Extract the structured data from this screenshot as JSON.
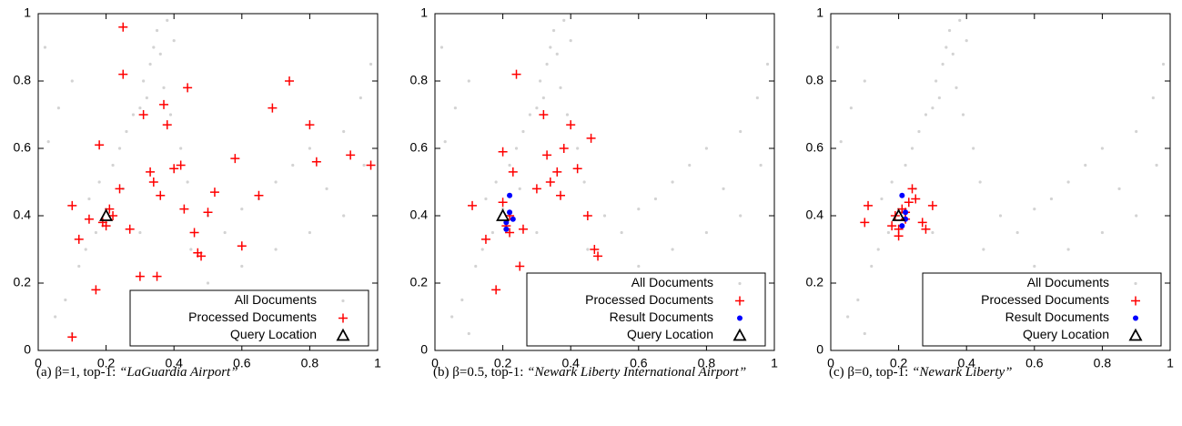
{
  "chart_data": [
    {
      "type": "scatter",
      "caption_prefix": "(a) β=1, top-1:",
      "caption_query": "“LaGuardia Airport”",
      "xlim": [
        0,
        1
      ],
      "ylim": [
        0,
        1
      ],
      "xticks": [
        0,
        0.2,
        0.4,
        0.6,
        0.8,
        1
      ],
      "yticks": [
        0,
        0.2,
        0.4,
        0.6,
        0.8,
        1
      ],
      "legend": "lower right",
      "series": [
        {
          "name": "All Documents",
          "color": "#d3d3d3",
          "marker": "dot",
          "x": [
            0.05,
            0.08,
            0.1,
            0.12,
            0.14,
            0.15,
            0.17,
            0.18,
            0.2,
            0.22,
            0.24,
            0.25,
            0.26,
            0.28,
            0.3,
            0.31,
            0.32,
            0.33,
            0.34,
            0.35,
            0.36,
            0.37,
            0.38,
            0.39,
            0.4,
            0.42,
            0.44,
            0.03,
            0.06,
            0.1,
            0.3,
            0.45,
            0.5,
            0.55,
            0.6,
            0.65,
            0.7,
            0.75,
            0.8,
            0.85,
            0.9,
            0.95,
            0.98,
            0.5,
            0.6,
            0.7,
            0.8,
            0.9,
            0.96,
            0.02
          ],
          "y": [
            0.1,
            0.15,
            0.05,
            0.25,
            0.3,
            0.45,
            0.35,
            0.5,
            0.42,
            0.55,
            0.6,
            0.48,
            0.65,
            0.7,
            0.72,
            0.8,
            0.75,
            0.85,
            0.9,
            0.95,
            0.88,
            0.78,
            0.98,
            0.7,
            0.92,
            0.6,
            0.5,
            0.62,
            0.72,
            0.8,
            0.35,
            0.3,
            0.4,
            0.35,
            0.42,
            0.45,
            0.5,
            0.55,
            0.6,
            0.48,
            0.65,
            0.75,
            0.85,
            0.2,
            0.25,
            0.3,
            0.35,
            0.4,
            0.55,
            0.9
          ]
        },
        {
          "name": "Processed Documents",
          "color": "#ff0000",
          "marker": "plus",
          "x": [
            0.1,
            0.12,
            0.15,
            0.17,
            0.18,
            0.19,
            0.2,
            0.21,
            0.22,
            0.24,
            0.25,
            0.25,
            0.27,
            0.3,
            0.31,
            0.33,
            0.34,
            0.35,
            0.36,
            0.37,
            0.38,
            0.4,
            0.42,
            0.43,
            0.44,
            0.46,
            0.47,
            0.48,
            0.5,
            0.52,
            0.58,
            0.6,
            0.65,
            0.69,
            0.74,
            0.8,
            0.82,
            0.92,
            0.98,
            0.1
          ],
          "y": [
            0.43,
            0.33,
            0.39,
            0.18,
            0.61,
            0.38,
            0.37,
            0.42,
            0.4,
            0.48,
            0.82,
            0.96,
            0.36,
            0.22,
            0.7,
            0.53,
            0.5,
            0.22,
            0.46,
            0.73,
            0.67,
            0.54,
            0.55,
            0.42,
            0.78,
            0.35,
            0.29,
            0.28,
            0.41,
            0.47,
            0.57,
            0.31,
            0.46,
            0.72,
            0.8,
            0.67,
            0.56,
            0.58,
            0.55,
            0.04
          ]
        },
        {
          "name": "Query Location",
          "color": "#000000",
          "marker": "triangle",
          "x": [
            0.2
          ],
          "y": [
            0.4
          ]
        }
      ]
    },
    {
      "type": "scatter",
      "caption_prefix": "(b) β=0.5, top-1:",
      "caption_query": "“Newark Liberty International Airport”",
      "xlim": [
        0,
        1
      ],
      "ylim": [
        0,
        1
      ],
      "xticks": [
        0,
        0.2,
        0.4,
        0.6,
        0.8,
        1
      ],
      "yticks": [
        0,
        0.2,
        0.4,
        0.6,
        0.8,
        1
      ],
      "legend": "lower right",
      "series": [
        {
          "name": "All Documents",
          "color": "#d3d3d3",
          "marker": "dot",
          "x": [
            0.05,
            0.08,
            0.1,
            0.12,
            0.14,
            0.15,
            0.17,
            0.18,
            0.2,
            0.22,
            0.24,
            0.25,
            0.26,
            0.28,
            0.3,
            0.31,
            0.32,
            0.33,
            0.34,
            0.35,
            0.36,
            0.37,
            0.38,
            0.39,
            0.4,
            0.42,
            0.44,
            0.03,
            0.06,
            0.1,
            0.3,
            0.45,
            0.5,
            0.55,
            0.6,
            0.65,
            0.7,
            0.75,
            0.8,
            0.85,
            0.9,
            0.95,
            0.98,
            0.5,
            0.6,
            0.7,
            0.8,
            0.9,
            0.96,
            0.02
          ],
          "y": [
            0.1,
            0.15,
            0.05,
            0.25,
            0.3,
            0.45,
            0.35,
            0.5,
            0.42,
            0.55,
            0.6,
            0.48,
            0.65,
            0.7,
            0.72,
            0.8,
            0.75,
            0.85,
            0.9,
            0.95,
            0.88,
            0.78,
            0.98,
            0.7,
            0.92,
            0.6,
            0.5,
            0.62,
            0.72,
            0.8,
            0.35,
            0.3,
            0.4,
            0.35,
            0.42,
            0.45,
            0.5,
            0.55,
            0.6,
            0.48,
            0.65,
            0.75,
            0.85,
            0.2,
            0.25,
            0.3,
            0.35,
            0.4,
            0.55,
            0.9
          ]
        },
        {
          "name": "Processed Documents",
          "color": "#ff0000",
          "marker": "plus",
          "x": [
            0.11,
            0.15,
            0.18,
            0.2,
            0.21,
            0.22,
            0.22,
            0.23,
            0.24,
            0.25,
            0.26,
            0.3,
            0.32,
            0.33,
            0.34,
            0.36,
            0.37,
            0.38,
            0.4,
            0.42,
            0.45,
            0.46,
            0.47,
            0.48,
            0.2
          ],
          "y": [
            0.43,
            0.33,
            0.18,
            0.59,
            0.37,
            0.35,
            0.4,
            0.53,
            0.82,
            0.25,
            0.36,
            0.48,
            0.7,
            0.58,
            0.5,
            0.53,
            0.46,
            0.6,
            0.67,
            0.54,
            0.4,
            0.63,
            0.3,
            0.28,
            0.44
          ]
        },
        {
          "name": "Result Documents",
          "color": "#0000ff",
          "marker": "circle",
          "x": [
            0.21,
            0.22,
            0.22,
            0.21,
            0.23
          ],
          "y": [
            0.38,
            0.46,
            0.41,
            0.36,
            0.39
          ]
        },
        {
          "name": "Query Location",
          "color": "#000000",
          "marker": "triangle",
          "x": [
            0.2
          ],
          "y": [
            0.4
          ]
        }
      ]
    },
    {
      "type": "scatter",
      "caption_prefix": "(c) β=0, top-1:",
      "caption_query": "“Newark Liberty”",
      "xlim": [
        0,
        1
      ],
      "ylim": [
        0,
        1
      ],
      "xticks": [
        0,
        0.2,
        0.4,
        0.6,
        0.8,
        1
      ],
      "yticks": [
        0,
        0.2,
        0.4,
        0.6,
        0.8,
        1
      ],
      "legend": "lower right",
      "series": [
        {
          "name": "All Documents",
          "color": "#d3d3d3",
          "marker": "dot",
          "x": [
            0.05,
            0.08,
            0.1,
            0.12,
            0.14,
            0.15,
            0.17,
            0.18,
            0.2,
            0.22,
            0.24,
            0.25,
            0.26,
            0.28,
            0.3,
            0.31,
            0.32,
            0.33,
            0.34,
            0.35,
            0.36,
            0.37,
            0.38,
            0.39,
            0.4,
            0.42,
            0.44,
            0.03,
            0.06,
            0.1,
            0.3,
            0.45,
            0.5,
            0.55,
            0.6,
            0.65,
            0.7,
            0.75,
            0.8,
            0.85,
            0.9,
            0.95,
            0.98,
            0.5,
            0.6,
            0.7,
            0.8,
            0.9,
            0.96,
            0.02
          ],
          "y": [
            0.1,
            0.15,
            0.05,
            0.25,
            0.3,
            0.45,
            0.35,
            0.5,
            0.42,
            0.55,
            0.6,
            0.48,
            0.65,
            0.7,
            0.72,
            0.8,
            0.75,
            0.85,
            0.9,
            0.95,
            0.88,
            0.78,
            0.98,
            0.7,
            0.92,
            0.6,
            0.5,
            0.62,
            0.72,
            0.8,
            0.35,
            0.3,
            0.4,
            0.35,
            0.42,
            0.45,
            0.5,
            0.55,
            0.6,
            0.48,
            0.65,
            0.75,
            0.85,
            0.2,
            0.25,
            0.3,
            0.35,
            0.4,
            0.55,
            0.9
          ]
        },
        {
          "name": "Processed Documents",
          "color": "#ff0000",
          "marker": "plus",
          "x": [
            0.1,
            0.11,
            0.18,
            0.19,
            0.2,
            0.21,
            0.22,
            0.23,
            0.24,
            0.25,
            0.27,
            0.28,
            0.3,
            0.2,
            0.22
          ],
          "y": [
            0.38,
            0.43,
            0.37,
            0.4,
            0.34,
            0.42,
            0.41,
            0.44,
            0.48,
            0.45,
            0.38,
            0.36,
            0.43,
            0.36,
            0.39
          ]
        },
        {
          "name": "Result Documents",
          "color": "#0000ff",
          "marker": "circle",
          "x": [
            0.21,
            0.22,
            0.21,
            0.22
          ],
          "y": [
            0.46,
            0.39,
            0.37,
            0.41
          ]
        },
        {
          "name": "Query Location",
          "color": "#000000",
          "marker": "triangle",
          "x": [
            0.2
          ],
          "y": [
            0.4
          ]
        }
      ]
    }
  ]
}
